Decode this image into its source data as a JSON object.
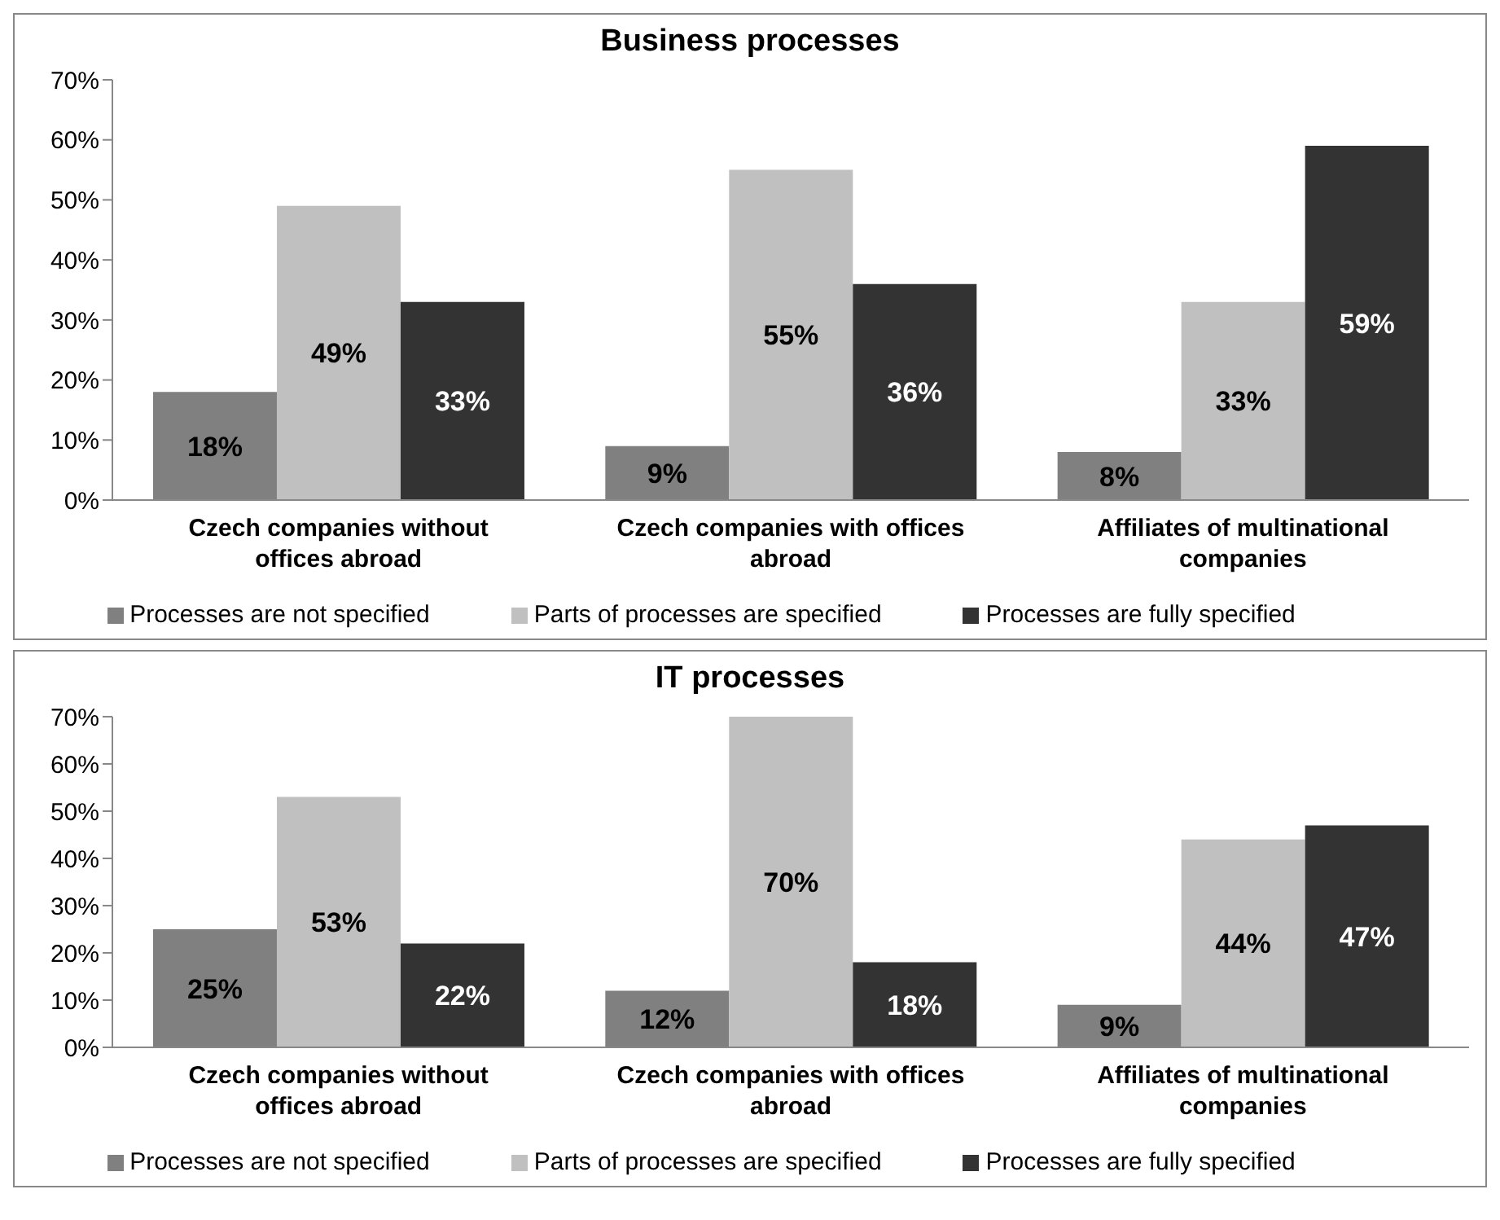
{
  "chart_data": [
    {
      "type": "bar",
      "title": "Business processes",
      "categories": [
        "Czech companies without offices abroad",
        "Czech companies with offices abroad",
        "Affiliates of multinational companies"
      ],
      "series": [
        {
          "name": "Processes are not specified",
          "color": "#808080",
          "values": [
            18,
            9,
            8
          ],
          "value_labels": [
            "18%",
            "9%",
            "8%"
          ]
        },
        {
          "name": "Parts of processes are specified",
          "color": "#c0c0c0",
          "values": [
            49,
            55,
            33
          ],
          "value_labels": [
            "49%",
            "55%",
            "33%"
          ]
        },
        {
          "name": "Processes are fully specified",
          "color": "#333333",
          "values": [
            33,
            36,
            59
          ],
          "value_labels": [
            "33%",
            "36%",
            "59%"
          ]
        }
      ],
      "ylim": [
        0,
        70
      ],
      "yticks": [
        {
          "value": 0,
          "label": "0%"
        },
        {
          "value": 10,
          "label": "10%"
        },
        {
          "value": 20,
          "label": "20%"
        },
        {
          "value": 30,
          "label": "30%"
        },
        {
          "value": 40,
          "label": "40%"
        },
        {
          "value": 50,
          "label": "50%"
        },
        {
          "value": 60,
          "label": "60%"
        },
        {
          "value": 70,
          "label": "70%"
        }
      ],
      "legend": "bottom"
    },
    {
      "type": "bar",
      "title": "IT processes",
      "categories": [
        "Czech companies without offices abroad",
        "Czech companies with offices abroad",
        "Affiliates of multinational companies"
      ],
      "series": [
        {
          "name": "Processes are not specified",
          "color": "#808080",
          "values": [
            25,
            12,
            9
          ],
          "value_labels": [
            "25%",
            "12%",
            "9%"
          ]
        },
        {
          "name": "Parts of processes are specified",
          "color": "#c0c0c0",
          "values": [
            53,
            70,
            44
          ],
          "value_labels": [
            "53%",
            "70%",
            "44%"
          ]
        },
        {
          "name": "Processes are fully specified",
          "color": "#333333",
          "values": [
            22,
            18,
            47
          ],
          "value_labels": [
            "22%",
            "18%",
            "47%"
          ]
        }
      ],
      "ylim": [
        0,
        70
      ],
      "yticks": [
        {
          "value": 0,
          "label": "0%"
        },
        {
          "value": 10,
          "label": "10%"
        },
        {
          "value": 20,
          "label": "20%"
        },
        {
          "value": 30,
          "label": "30%"
        },
        {
          "value": 40,
          "label": "40%"
        },
        {
          "value": 50,
          "label": "50%"
        },
        {
          "value": 60,
          "label": "60%"
        },
        {
          "value": 70,
          "label": "70%"
        }
      ],
      "legend": "bottom"
    }
  ]
}
